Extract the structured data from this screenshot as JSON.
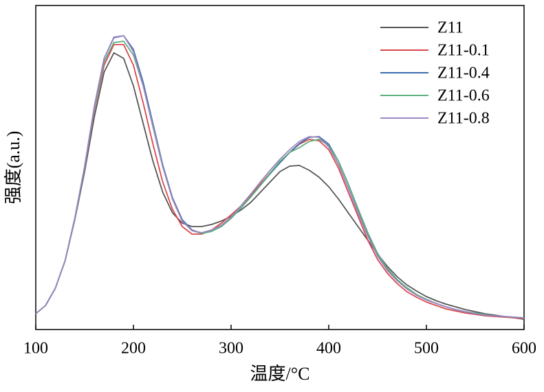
{
  "chart_data": {
    "type": "line",
    "xlabel": "温度/°C",
    "ylabel": "强度(a.u.)",
    "x": [
      100,
      110,
      120,
      130,
      140,
      150,
      160,
      170,
      180,
      190,
      200,
      210,
      220,
      230,
      240,
      250,
      260,
      270,
      280,
      290,
      300,
      310,
      320,
      330,
      340,
      350,
      360,
      370,
      380,
      390,
      400,
      410,
      420,
      430,
      440,
      450,
      460,
      470,
      480,
      490,
      500,
      510,
      520,
      530,
      540,
      550,
      560,
      570,
      580,
      590,
      600
    ],
    "xlim": [
      100,
      600
    ],
    "xticks": [
      100,
      200,
      300,
      400,
      500,
      600
    ],
    "ylim": [
      0,
      472
    ],
    "legend": "upper right",
    "series": [
      {
        "name": "Z11",
        "color": "#555555",
        "values": [
          23,
          35,
          60,
          100,
          160,
          230,
          310,
          375,
          403,
          395,
          355,
          300,
          245,
          200,
          170,
          155,
          150,
          150,
          153,
          158,
          165,
          174,
          185,
          200,
          215,
          230,
          238,
          239,
          232,
          222,
          208,
          190,
          170,
          150,
          130,
          110,
          92,
          77,
          65,
          56,
          48,
          42,
          37,
          33,
          29,
          26,
          23,
          21,
          19,
          17,
          15
        ]
      },
      {
        "name": "Z11-0.1",
        "color": "#d9484c",
        "values": [
          23,
          35,
          60,
          100,
          162,
          235,
          320,
          385,
          415,
          415,
          385,
          330,
          270,
          215,
          175,
          150,
          139,
          139,
          145,
          155,
          167,
          180,
          195,
          212,
          228,
          243,
          258,
          270,
          277,
          275,
          262,
          235,
          200,
          165,
          130,
          102,
          82,
          67,
          55,
          47,
          40,
          35,
          30,
          27,
          24,
          22,
          20,
          19,
          18,
          17,
          16
        ]
      },
      {
        "name": "Z11-0.4",
        "color": "#3a6aad",
        "values": [
          23,
          35,
          60,
          100,
          162,
          237,
          325,
          395,
          425,
          428,
          408,
          360,
          300,
          240,
          192,
          160,
          145,
          140,
          143,
          150,
          162,
          177,
          193,
          210,
          227,
          243,
          258,
          271,
          280,
          281,
          270,
          245,
          212,
          175,
          140,
          110,
          88,
          72,
          60,
          50,
          43,
          38,
          33,
          29,
          26,
          23,
          21,
          20,
          19,
          18,
          17
        ]
      },
      {
        "name": "Z11-0.6",
        "color": "#5aae7a",
        "values": [
          23,
          35,
          60,
          100,
          162,
          236,
          322,
          390,
          418,
          420,
          400,
          355,
          297,
          238,
          190,
          158,
          144,
          140,
          143,
          150,
          162,
          177,
          193,
          210,
          228,
          245,
          258,
          265,
          274,
          277,
          268,
          245,
          212,
          176,
          141,
          111,
          89,
          73,
          61,
          51,
          44,
          38,
          33,
          29,
          26,
          24,
          22,
          20,
          19,
          18,
          17
        ]
      },
      {
        "name": "Z11-0.8",
        "color": "#9b86c1",
        "values": [
          23,
          35,
          60,
          100,
          162,
          237,
          325,
          395,
          426,
          428,
          405,
          355,
          295,
          237,
          190,
          158,
          144,
          141,
          145,
          152,
          164,
          180,
          197,
          215,
          232,
          248,
          262,
          274,
          281,
          280,
          266,
          240,
          206,
          170,
          136,
          107,
          86,
          71,
          59,
          50,
          43,
          38,
          33,
          29,
          26,
          23,
          21,
          20,
          19,
          18,
          17
        ]
      }
    ]
  }
}
